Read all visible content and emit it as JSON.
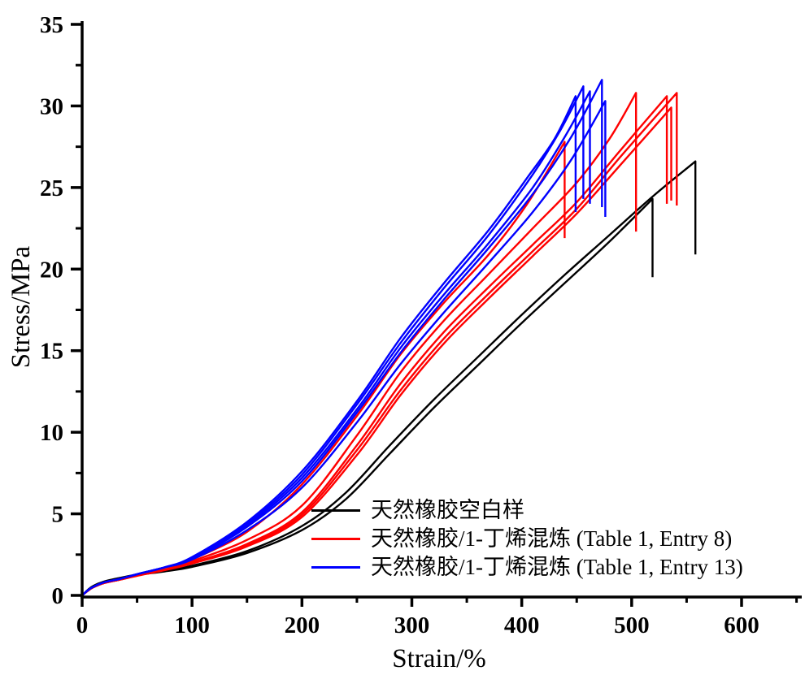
{
  "figure": {
    "background": "#FFFFFF"
  },
  "chart_data": {
    "type": "line",
    "title": "",
    "xlabel": "Strain/%",
    "ylabel": "Stress/MPa",
    "xlim": [
      0,
      655
    ],
    "ylim": [
      0,
      35
    ],
    "x_ticks": [
      0,
      100,
      200,
      300,
      400,
      500,
      600
    ],
    "x_minor_ticks": [
      50,
      150,
      250,
      350,
      450,
      550,
      650
    ],
    "y_ticks": [
      0,
      5,
      10,
      15,
      20,
      25,
      30,
      35
    ],
    "y_minor_ticks": [
      2.5,
      7.5,
      12.5,
      17.5,
      22.5,
      27.5,
      32.5
    ],
    "grid": false,
    "legend_position": "inside-bottom-right",
    "axis_color": "#000000",
    "series": [
      {
        "name": "天然橡胶空白样",
        "color": "#000000",
        "curves": [
          {
            "drop_to": 19.5,
            "points": [
              [
                0,
                0
              ],
              [
                5,
                0.32
              ],
              [
                10,
                0.56
              ],
              [
                20,
                0.83
              ],
              [
                35,
                1.05
              ],
              [
                50,
                1.25
              ],
              [
                75,
                1.47
              ],
              [
                100,
                1.75
              ],
              [
                150,
                2.6
              ],
              [
                200,
                4.0
              ],
              [
                240,
                5.9
              ],
              [
                280,
                8.7
              ],
              [
                320,
                11.5
              ],
              [
                360,
                14.1
              ],
              [
                400,
                16.7
              ],
              [
                440,
                19.2
              ],
              [
                480,
                21.7
              ],
              [
                519,
                24.3
              ]
            ]
          },
          {
            "drop_to": 20.9,
            "points": [
              [
                0,
                0
              ],
              [
                5,
                0.33
              ],
              [
                10,
                0.58
              ],
              [
                20,
                0.85
              ],
              [
                35,
                1.08
              ],
              [
                50,
                1.28
              ],
              [
                75,
                1.5
              ],
              [
                100,
                1.82
              ],
              [
                150,
                2.72
              ],
              [
                200,
                4.25
              ],
              [
                240,
                6.3
              ],
              [
                280,
                9.2
              ],
              [
                320,
                12.0
              ],
              [
                360,
                14.6
              ],
              [
                400,
                17.2
              ],
              [
                440,
                19.7
              ],
              [
                480,
                22.1
              ],
              [
                520,
                24.5
              ],
              [
                558,
                26.6
              ]
            ]
          }
        ]
      },
      {
        "name": "天然橡胶/1-丁烯混炼 (Table 1, Entry 8)",
        "color": "#FF0000",
        "curves": [
          {
            "drop_to": 21.9,
            "points": [
              [
                0,
                0
              ],
              [
                5,
                0.28
              ],
              [
                10,
                0.5
              ],
              [
                20,
                0.76
              ],
              [
                35,
                0.98
              ],
              [
                50,
                1.22
              ],
              [
                75,
                1.58
              ],
              [
                100,
                2.2
              ],
              [
                150,
                3.9
              ],
              [
                200,
                6.8
              ],
              [
                250,
                11.0
              ],
              [
                290,
                14.8
              ],
              [
                330,
                18.0
              ],
              [
                370,
                20.9
              ],
              [
                405,
                24.0
              ],
              [
                439,
                27.8
              ]
            ]
          },
          {
            "drop_to": 22.3,
            "points": [
              [
                0,
                0
              ],
              [
                5,
                0.28
              ],
              [
                10,
                0.5
              ],
              [
                20,
                0.76
              ],
              [
                35,
                0.98
              ],
              [
                50,
                1.22
              ],
              [
                75,
                1.58
              ],
              [
                100,
                2.1
              ],
              [
                150,
                3.4
              ],
              [
                200,
                5.5
              ],
              [
                250,
                9.8
              ],
              [
                290,
                13.7
              ],
              [
                330,
                16.9
              ],
              [
                370,
                19.7
              ],
              [
                410,
                22.5
              ],
              [
                450,
                25.3
              ],
              [
                480,
                28.0
              ],
              [
                504,
                30.8
              ]
            ]
          },
          {
            "drop_to": 24.0,
            "points": [
              [
                0,
                0
              ],
              [
                5,
                0.28
              ],
              [
                10,
                0.5
              ],
              [
                20,
                0.76
              ],
              [
                35,
                0.98
              ],
              [
                50,
                1.22
              ],
              [
                75,
                1.58
              ],
              [
                100,
                2.0
              ],
              [
                150,
                3.15
              ],
              [
                200,
                5.1
              ],
              [
                250,
                9.2
              ],
              [
                290,
                13.0
              ],
              [
                330,
                16.2
              ],
              [
                370,
                18.9
              ],
              [
                410,
                21.5
              ],
              [
                450,
                24.1
              ],
              [
                490,
                27.3
              ],
              [
                532,
                30.6
              ]
            ]
          },
          {
            "drop_to": 24.2,
            "points": [
              [
                0,
                0
              ],
              [
                5,
                0.27
              ],
              [
                10,
                0.49
              ],
              [
                20,
                0.75
              ],
              [
                35,
                0.97
              ],
              [
                50,
                1.2
              ],
              [
                75,
                1.55
              ],
              [
                100,
                1.95
              ],
              [
                150,
                3.0
              ],
              [
                200,
                4.8
              ],
              [
                250,
                8.6
              ],
              [
                290,
                12.3
              ],
              [
                330,
                15.5
              ],
              [
                370,
                18.2
              ],
              [
                410,
                20.8
              ],
              [
                450,
                23.4
              ],
              [
                490,
                26.4
              ],
              [
                536,
                29.9
              ]
            ]
          },
          {
            "drop_to": 23.9,
            "points": [
              [
                0,
                0
              ],
              [
                5,
                0.28
              ],
              [
                10,
                0.5
              ],
              [
                20,
                0.76
              ],
              [
                35,
                0.98
              ],
              [
                50,
                1.22
              ],
              [
                75,
                1.58
              ],
              [
                100,
                1.98
              ],
              [
                150,
                3.08
              ],
              [
                200,
                4.95
              ],
              [
                250,
                8.9
              ],
              [
                290,
                12.6
              ],
              [
                330,
                15.8
              ],
              [
                370,
                18.5
              ],
              [
                410,
                21.1
              ],
              [
                450,
                23.7
              ],
              [
                490,
                26.9
              ],
              [
                541,
                30.8
              ]
            ]
          }
        ]
      },
      {
        "name": "天然橡胶/1-丁烯混炼 (Table 1, Entry 13)",
        "color": "#0000FF",
        "curves": [
          {
            "drop_to": 23.5,
            "points": [
              [
                0,
                0
              ],
              [
                5,
                0.3
              ],
              [
                10,
                0.52
              ],
              [
                20,
                0.8
              ],
              [
                35,
                1.02
              ],
              [
                50,
                1.3
              ],
              [
                75,
                1.72
              ],
              [
                100,
                2.35
              ],
              [
                150,
                4.5
              ],
              [
                200,
                7.6
              ],
              [
                250,
                11.9
              ],
              [
                290,
                15.8
              ],
              [
                330,
                19.2
              ],
              [
                370,
                22.4
              ],
              [
                405,
                25.6
              ],
              [
                430,
                28.0
              ],
              [
                449,
                30.6
              ]
            ]
          },
          {
            "drop_to": 24.3,
            "points": [
              [
                0,
                0
              ],
              [
                5,
                0.3
              ],
              [
                10,
                0.52
              ],
              [
                20,
                0.8
              ],
              [
                35,
                1.02
              ],
              [
                50,
                1.3
              ],
              [
                75,
                1.72
              ],
              [
                100,
                2.3
              ],
              [
                150,
                4.4
              ],
              [
                200,
                7.4
              ],
              [
                250,
                11.7
              ],
              [
                290,
                15.5
              ],
              [
                330,
                18.9
              ],
              [
                370,
                22.1
              ],
              [
                410,
                25.8
              ],
              [
                435,
                28.5
              ],
              [
                456,
                31.2
              ]
            ]
          },
          {
            "drop_to": 24.0,
            "points": [
              [
                0,
                0
              ],
              [
                5,
                0.3
              ],
              [
                10,
                0.52
              ],
              [
                20,
                0.8
              ],
              [
                35,
                1.02
              ],
              [
                50,
                1.3
              ],
              [
                75,
                1.72
              ],
              [
                100,
                2.28
              ],
              [
                150,
                4.3
              ],
              [
                200,
                7.2
              ],
              [
                250,
                11.4
              ],
              [
                290,
                15.2
              ],
              [
                330,
                18.5
              ],
              [
                370,
                21.6
              ],
              [
                410,
                25.0
              ],
              [
                440,
                28.2
              ],
              [
                462,
                30.9
              ]
            ]
          },
          {
            "drop_to": 23.8,
            "points": [
              [
                0,
                0
              ],
              [
                5,
                0.3
              ],
              [
                10,
                0.52
              ],
              [
                20,
                0.8
              ],
              [
                35,
                1.02
              ],
              [
                50,
                1.3
              ],
              [
                75,
                1.72
              ],
              [
                100,
                2.25
              ],
              [
                150,
                4.2
              ],
              [
                200,
                7.0
              ],
              [
                250,
                11.2
              ],
              [
                290,
                14.9
              ],
              [
                330,
                18.2
              ],
              [
                370,
                21.3
              ],
              [
                410,
                24.6
              ],
              [
                445,
                28.1
              ],
              [
                473,
                31.6
              ]
            ]
          },
          {
            "drop_to": 23.2,
            "points": [
              [
                0,
                0
              ],
              [
                5,
                0.3
              ],
              [
                10,
                0.52
              ],
              [
                20,
                0.8
              ],
              [
                35,
                1.02
              ],
              [
                50,
                1.3
              ],
              [
                75,
                1.72
              ],
              [
                100,
                2.2
              ],
              [
                150,
                4.0
              ],
              [
                200,
                6.6
              ],
              [
                250,
                10.6
              ],
              [
                290,
                14.2
              ],
              [
                330,
                17.4
              ],
              [
                370,
                20.4
              ],
              [
                410,
                23.5
              ],
              [
                445,
                26.7
              ],
              [
                476,
                30.3
              ]
            ]
          }
        ]
      }
    ]
  }
}
